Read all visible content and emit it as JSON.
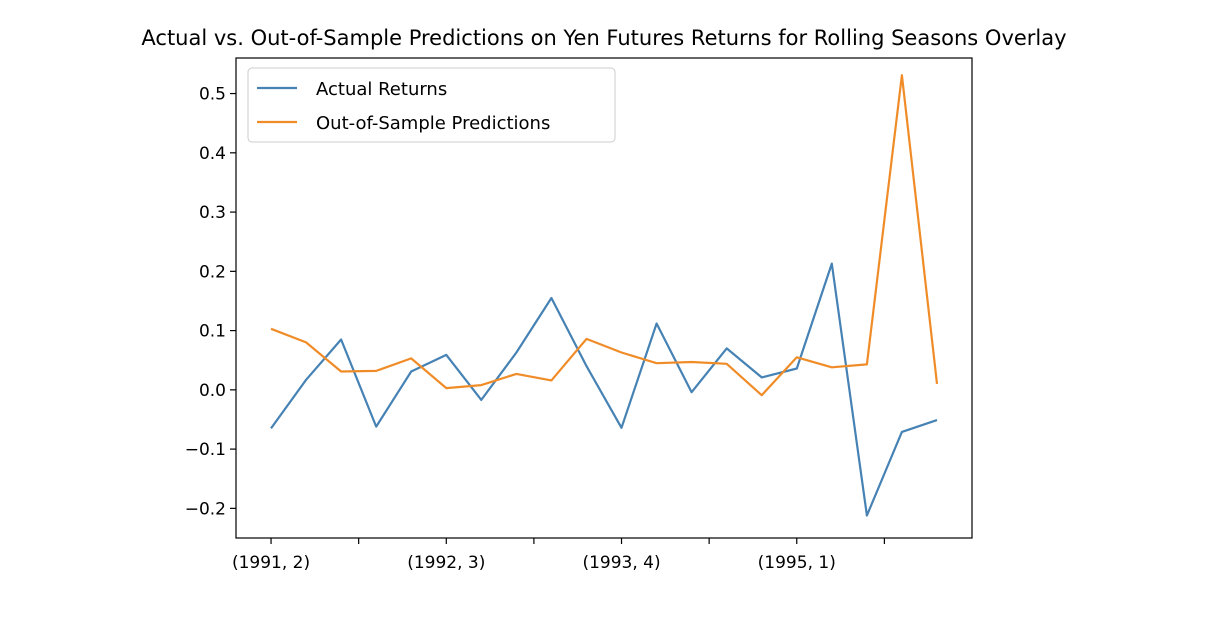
{
  "chart_data": {
    "type": "line",
    "title": "Actual vs. Out-of-Sample Predictions on Yen Futures Returns for Rolling Seasons Overlay",
    "xlabel": "",
    "ylabel": "",
    "x_tick_labels": [
      "(1991, 2)",
      "(1992, 3)",
      "(1993, 4)",
      "(1995, 1)"
    ],
    "x_tick_positions": [
      0,
      5,
      10,
      15
    ],
    "x_minor_tick_positions": [
      2.5,
      7.5,
      12.5,
      17.5
    ],
    "y_ticks": [
      -0.2,
      -0.1,
      0.0,
      0.1,
      0.2,
      0.3,
      0.4,
      0.5
    ],
    "y_tick_labels": [
      "−0.2",
      "−0.1",
      "0.0",
      "0.1",
      "0.2",
      "0.3",
      "0.4",
      "0.5"
    ],
    "xlim": [
      -1,
      20
    ],
    "ylim": [
      -0.25,
      0.56
    ],
    "grid": false,
    "legend_position": "upper-left",
    "series": [
      {
        "name": "Actual Returns",
        "color": "#4682b4",
        "values": [
          -0.065,
          0.017,
          0.085,
          -0.062,
          0.031,
          0.059,
          -0.017,
          0.063,
          0.155,
          0.04,
          -0.064,
          0.112,
          -0.004,
          0.07,
          0.021,
          0.036,
          0.213,
          -0.212,
          -0.071,
          -0.051
        ]
      },
      {
        "name": "Out-of-Sample Predictions",
        "color": "#f08c28",
        "values": [
          0.103,
          0.08,
          0.031,
          0.032,
          0.053,
          0.003,
          0.008,
          0.027,
          0.016,
          0.086,
          0.063,
          0.045,
          0.047,
          0.044,
          -0.009,
          0.055,
          0.038,
          0.043,
          0.531,
          0.01
        ]
      }
    ]
  }
}
